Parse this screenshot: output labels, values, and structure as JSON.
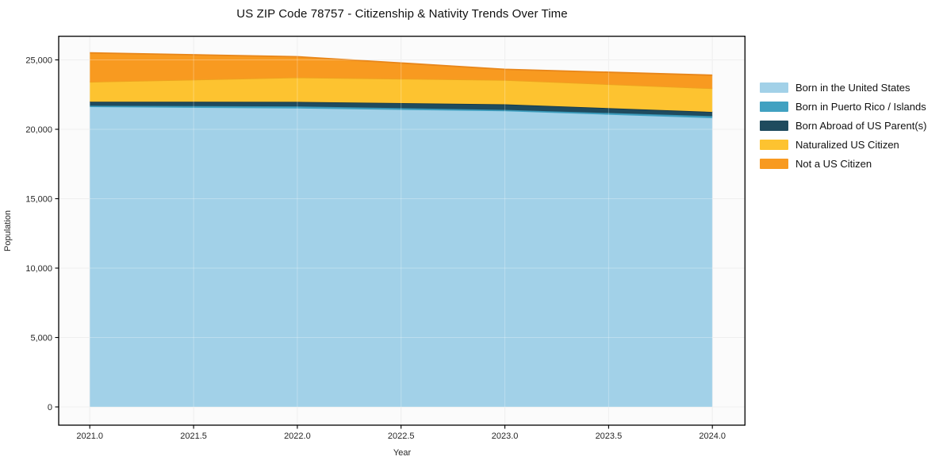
{
  "chart_data": {
    "type": "area",
    "stacked": true,
    "title": "US ZIP Code 78757 - Citizenship & Nativity Trends Over Time",
    "xlabel": "Year",
    "ylabel": "Population",
    "x": [
      2021,
      2022,
      2023,
      2024
    ],
    "series": [
      {
        "name": "Born in the United States",
        "color": "#a2d1e8",
        "edge": "#a2d1e8",
        "values": [
          21600,
          21500,
          21300,
          20800
        ]
      },
      {
        "name": "Born in Puerto Rico / Islands",
        "color": "#41a1c1",
        "edge": "#3692b1",
        "values": [
          100,
          150,
          100,
          150
        ]
      },
      {
        "name": "Born Abroad of US Parent(s)",
        "color": "#1f4b5e",
        "edge": "#16394a",
        "values": [
          290,
          330,
          400,
          300
        ]
      },
      {
        "name": "Naturalized US Citizen",
        "color": "#fdc330",
        "edge": "#eea31f",
        "values": [
          1430,
          1760,
          1750,
          1700
        ]
      },
      {
        "name": "Not a US Citizen",
        "color": "#f89a20",
        "edge": "#e8861a",
        "values": [
          2090,
          1490,
          770,
          950
        ]
      }
    ],
    "xticks": {
      "values": [
        2021.0,
        2021.5,
        2022.0,
        2022.5,
        2023.0,
        2023.5,
        2024.0
      ],
      "labels": [
        "2021.0",
        "2021.5",
        "2022.0",
        "2022.5",
        "2023.0",
        "2023.5",
        "2024.0"
      ]
    },
    "yticks": {
      "values": [
        0,
        5000,
        10000,
        15000,
        20000,
        25000
      ],
      "labels": [
        "0",
        "5,000",
        "10,000",
        "15,000",
        "20,000",
        "25,000"
      ]
    },
    "xlim": [
      2020.85,
      2024.157
    ],
    "ylim": [
      -1314,
      26703
    ],
    "grid": true,
    "legend_position": "right",
    "colors": {
      "plot_background": "#fbfbfb",
      "gridline": "#e9e9e9",
      "frame": "#000000",
      "tick_label": "#262626"
    }
  }
}
